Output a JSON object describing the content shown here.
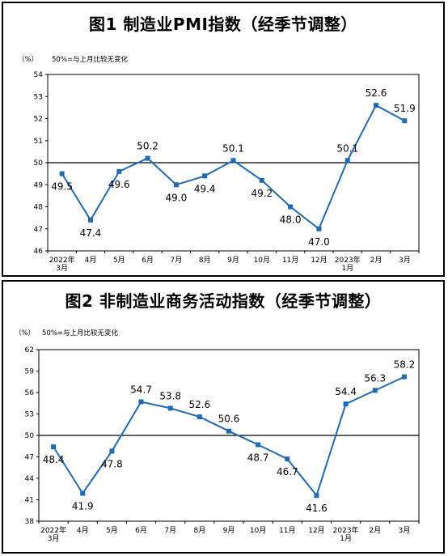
{
  "charts": [
    {
      "title": "图1  制造业PMI指数（经季节调整）",
      "unit": "（%）",
      "note": "50%=与上月比较无变化"
    },
    {
      "title": "图2  非制造业商务活动指数（经季节调整）",
      "unit": "（%）",
      "note": "50%=与上月比较无变化"
    }
  ],
  "chart_data": [
    {
      "type": "line",
      "title": "图1  制造业PMI指数（经季节调整）",
      "ylabel": "（%）",
      "reference_line": 50,
      "ylim": [
        46,
        54
      ],
      "yticks": [
        46,
        47,
        48,
        49,
        50,
        51,
        52,
        53,
        54
      ],
      "categories": [
        "2022年 3月",
        "4月",
        "5月",
        "6月",
        "7月",
        "8月",
        "9月",
        "10月",
        "11月",
        "12月",
        "2023年 1月",
        "2月",
        "3月"
      ],
      "tick_lines": [
        [
          "2022年",
          "3月"
        ],
        [
          "4月"
        ],
        [
          "5月"
        ],
        [
          "6月"
        ],
        [
          "7月"
        ],
        [
          "8月"
        ],
        [
          "9月"
        ],
        [
          "10月"
        ],
        [
          "11月"
        ],
        [
          "12月"
        ],
        [
          "2023年",
          "1月"
        ],
        [
          "2月"
        ],
        [
          "3月"
        ]
      ],
      "series": [
        {
          "values": [
            49.5,
            47.4,
            49.6,
            50.2,
            49.0,
            49.4,
            50.1,
            49.2,
            48.0,
            47.0,
            50.1,
            52.6,
            51.9
          ],
          "color": "#1f6ab5"
        }
      ],
      "data_labels": [
        "49.5",
        "47.4",
        "49.6",
        "50.2",
        "49.0",
        "49.4",
        "50.1",
        "49.2",
        "48.0",
        "47.0",
        "50.1",
        "52.6",
        "51.9"
      ],
      "grid": false
    },
    {
      "type": "line",
      "title": "图2  非制造业商务活动指数（经季节调整）",
      "ylabel": "（%）",
      "reference_line": 50,
      "ylim": [
        38,
        62
      ],
      "yticks": [
        38,
        41,
        44,
        47,
        50,
        53,
        56,
        59,
        62
      ],
      "categories": [
        "2022年 3月",
        "4月",
        "5月",
        "6月",
        "7月",
        "8月",
        "9月",
        "10月",
        "11月",
        "12月",
        "2023年 1月",
        "2月",
        "3月"
      ],
      "tick_lines": [
        [
          "2022年",
          "3月"
        ],
        [
          "4月"
        ],
        [
          "5月"
        ],
        [
          "6月"
        ],
        [
          "7月"
        ],
        [
          "8月"
        ],
        [
          "9月"
        ],
        [
          "10月"
        ],
        [
          "11月"
        ],
        [
          "12月"
        ],
        [
          "2023年",
          "1月"
        ],
        [
          "2月"
        ],
        [
          "3月"
        ]
      ],
      "series": [
        {
          "values": [
            48.4,
            41.9,
            47.8,
            54.7,
            53.8,
            52.6,
            50.6,
            48.7,
            46.7,
            41.6,
            54.4,
            56.3,
            58.2
          ],
          "color": "#1f6ab5"
        }
      ],
      "data_labels": [
        "48.4",
        "41.9",
        "47.8",
        "54.7",
        "53.8",
        "52.6",
        "50.6",
        "48.7",
        "46.7",
        "41.6",
        "54.4",
        "56.3",
        "58.2"
      ],
      "grid": false
    }
  ]
}
